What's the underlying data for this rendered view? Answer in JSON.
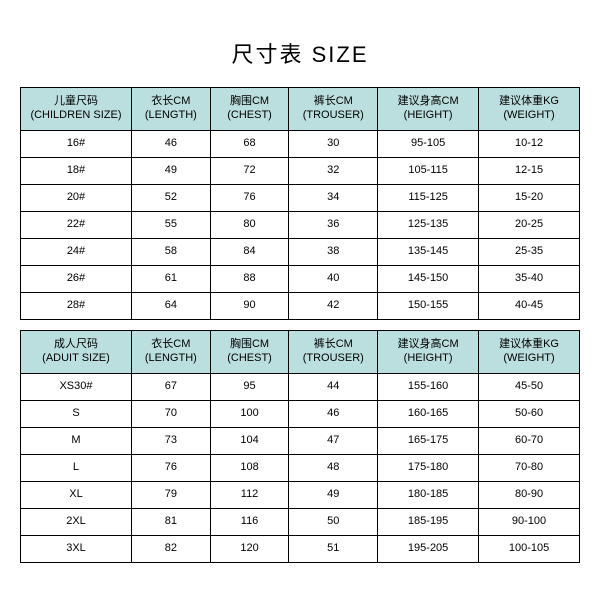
{
  "title": "尺寸表 SIZE",
  "header_bg": "#bbdfde",
  "row_bg": "#ffffff",
  "children_headers": [
    {
      "zh": "儿童尺码",
      "en": "(CHILDREN SIZE)"
    },
    {
      "zh": "衣长CM",
      "en": "(LENGTH)"
    },
    {
      "zh": "胸围CM",
      "en": "(CHEST)"
    },
    {
      "zh": "裤长CM",
      "en": "(TROUSER)"
    },
    {
      "zh": "建议身高CM",
      "en": "(HEIGHT)"
    },
    {
      "zh": "建议体重KG",
      "en": "(WEIGHT)"
    }
  ],
  "children_rows": [
    [
      "16#",
      "46",
      "68",
      "30",
      "95-105",
      "10-12"
    ],
    [
      "18#",
      "49",
      "72",
      "32",
      "105-115",
      "12-15"
    ],
    [
      "20#",
      "52",
      "76",
      "34",
      "115-125",
      "15-20"
    ],
    [
      "22#",
      "55",
      "80",
      "36",
      "125-135",
      "20-25"
    ],
    [
      "24#",
      "58",
      "84",
      "38",
      "135-145",
      "25-35"
    ],
    [
      "26#",
      "61",
      "88",
      "40",
      "145-150",
      "35-40"
    ],
    [
      "28#",
      "64",
      "90",
      "42",
      "150-155",
      "40-45"
    ]
  ],
  "adult_headers": [
    {
      "zh": "成人尺码",
      "en": "(ADUIT SIZE)"
    },
    {
      "zh": "衣长CM",
      "en": "(LENGTH)"
    },
    {
      "zh": "胸围CM",
      "en": "(CHEST)"
    },
    {
      "zh": "裤长CM",
      "en": "(TROUSER)"
    },
    {
      "zh": "建议身高CM",
      "en": "(HEIGHT)"
    },
    {
      "zh": "建议体重KG",
      "en": "(WEIGHT)"
    }
  ],
  "adult_rows": [
    [
      "XS30#",
      "67",
      "95",
      "44",
      "155-160",
      "45-50"
    ],
    [
      "S",
      "70",
      "100",
      "46",
      "160-165",
      "50-60"
    ],
    [
      "M",
      "73",
      "104",
      "47",
      "165-175",
      "60-70"
    ],
    [
      "L",
      "76",
      "108",
      "48",
      "175-180",
      "70-80"
    ],
    [
      "XL",
      "79",
      "112",
      "49",
      "180-185",
      "80-90"
    ],
    [
      "2XL",
      "81",
      "116",
      "50",
      "185-195",
      "90-100"
    ],
    [
      "3XL",
      "82",
      "120",
      "51",
      "195-205",
      "100-105"
    ]
  ]
}
